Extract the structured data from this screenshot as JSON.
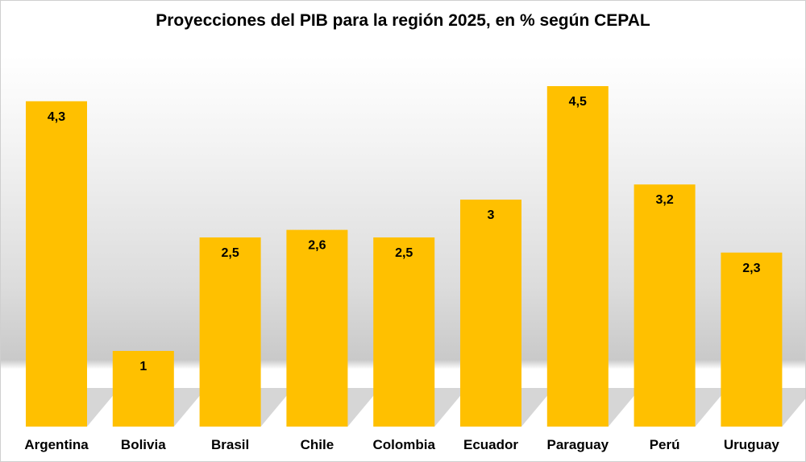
{
  "chart_data": {
    "type": "bar",
    "title": "Proyecciones del PIB para la región 2025, en % según CEPAL",
    "categories": [
      "Argentina",
      "Bolivia",
      "Brasil",
      "Chile",
      "Colombia",
      "Ecuador",
      "Paraguay",
      "Perú",
      "Uruguay"
    ],
    "values": [
      4.3,
      1,
      2.5,
      2.6,
      2.5,
      3,
      4.5,
      3.2,
      2.3
    ],
    "data_labels": [
      "4,3",
      "1",
      "2,5",
      "2,6",
      "2,5",
      "3",
      "4,5",
      "3,2",
      "2,3"
    ],
    "xlabel": "",
    "ylabel": "",
    "ylim": [
      0,
      5
    ],
    "grid": false,
    "bar_color": "#FFC000",
    "shadow_color": "#c8c8c8"
  }
}
